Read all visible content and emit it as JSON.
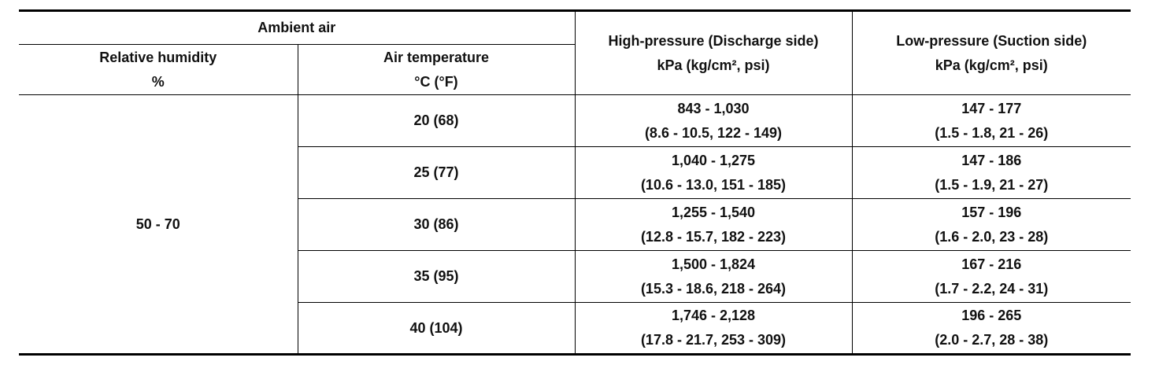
{
  "table": {
    "header": {
      "ambient_air": "Ambient air",
      "relative_humidity": "Relative humidity",
      "relative_humidity_unit": "%",
      "air_temperature": "Air temperature",
      "air_temperature_unit": "°C (°F)",
      "high_pressure": "High-pressure (Discharge side)",
      "high_pressure_unit": "kPa (kg/cm², psi)",
      "low_pressure": "Low-pressure (Suction side)",
      "low_pressure_unit": "kPa (kg/cm², psi)"
    },
    "relative_humidity": "50 - 70",
    "rows": [
      {
        "temperature": "20 (68)",
        "high": [
          "843 - 1,030",
          "(8.6 - 10.5, 122 - 149)"
        ],
        "low": [
          "147 - 177",
          "(1.5 - 1.8, 21 - 26)"
        ]
      },
      {
        "temperature": "25 (77)",
        "high": [
          "1,040 - 1,275",
          "(10.6 - 13.0, 151 - 185)"
        ],
        "low": [
          "147 - 186",
          "(1.5 - 1.9, 21 - 27)"
        ]
      },
      {
        "temperature": "30 (86)",
        "high": [
          "1,255 - 1,540",
          "(12.8 - 15.7, 182 - 223)"
        ],
        "low": [
          "157 - 196",
          "(1.6 - 2.0, 23 - 28)"
        ]
      },
      {
        "temperature": "35 (95)",
        "high": [
          "1,500 - 1,824",
          "(15.3 - 18.6, 218 - 264)"
        ],
        "low": [
          "167 - 216",
          "(1.7 - 2.2, 24 - 31)"
        ]
      },
      {
        "temperature": "40 (104)",
        "high": [
          "1,746 - 2,128",
          "(17.8 - 21.7, 253 - 309)"
        ],
        "low": [
          "196 - 265",
          "(2.0 - 2.7, 28 - 38)"
        ]
      }
    ]
  }
}
